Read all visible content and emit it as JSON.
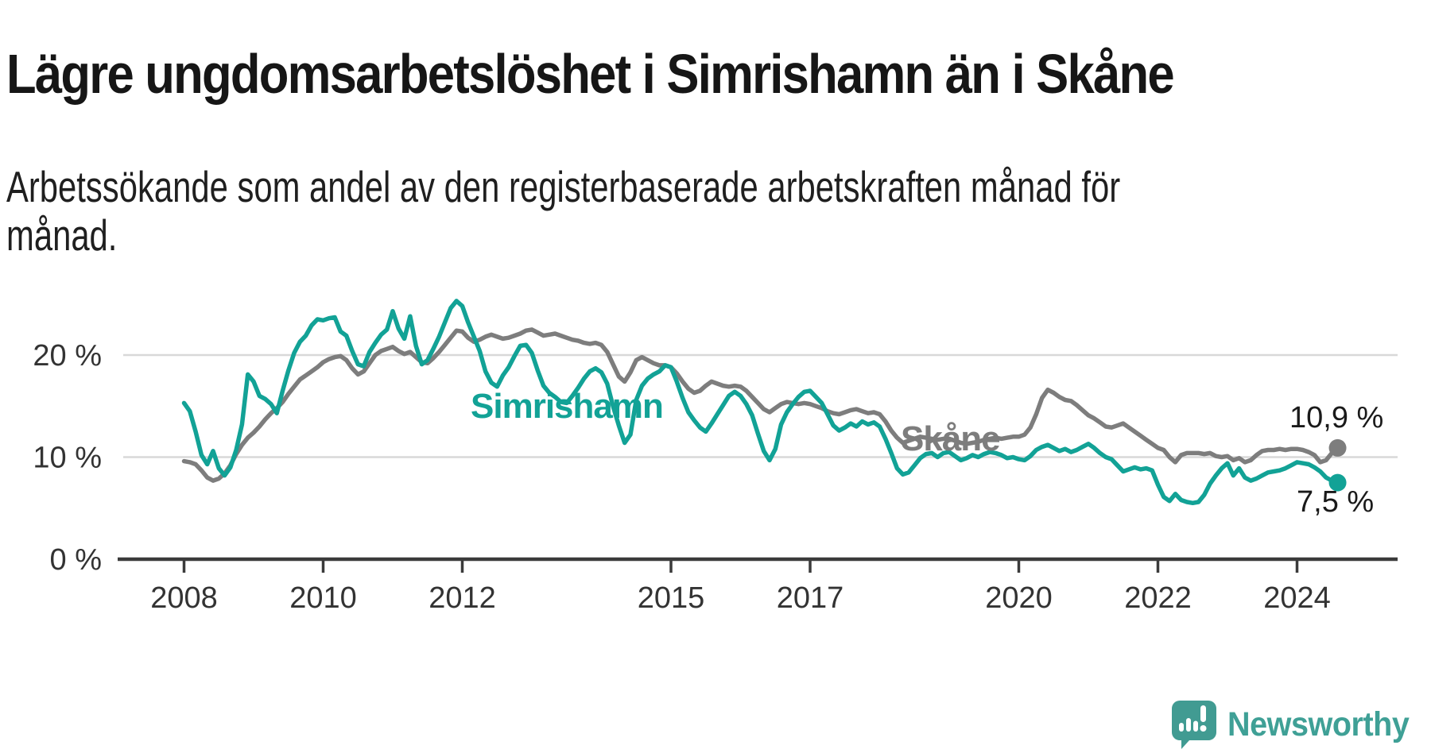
{
  "title": "Lägre ungdomsarbetslöshet i Simrishamn än i Skåne",
  "subtitle": "Arbetssökande som andel av den registerbaserade arbetskraften månad för månad.",
  "branding": {
    "logo_text": "Newsworthy",
    "logo_icon": "speech-bubble-bar-chart-icon"
  },
  "chart_data": {
    "type": "line",
    "title": "Lägre ungdomsarbetslöshet i Simrishamn än i Skåne",
    "subtitle": "Arbetssökande som andel av den registerbaserade arbetskraften månad för månad.",
    "unit": "%",
    "grid": "horizontal",
    "legend": "inline-labels",
    "x_axis": {
      "ticks": [
        "2008",
        "2010",
        "2012",
        "2015",
        "2017",
        "2020",
        "2022",
        "2024"
      ],
      "tick_years": [
        2008,
        2010,
        2012,
        2015,
        2017,
        2020,
        2022,
        2024
      ],
      "range_years": [
        2007.6,
        2025.4
      ]
    },
    "y_axis": {
      "ticks": [
        {
          "value": 0,
          "label": "0 %"
        },
        {
          "value": 10,
          "label": "10 %"
        },
        {
          "value": 20,
          "label": "20 %"
        }
      ],
      "range": [
        0,
        27
      ]
    },
    "series": [
      {
        "name": "Skåne",
        "color": "#7d7d7d",
        "end_label": "10,9 %",
        "end_value": 10.9,
        "start_year": 2008,
        "step_months": 1,
        "values": [
          9.6,
          9.5,
          9.3,
          8.7,
          8.0,
          7.7,
          7.9,
          8.4,
          9.2,
          10.3,
          11.2,
          11.9,
          12.4,
          13.0,
          13.7,
          14.3,
          14.8,
          15.4,
          16.2,
          16.9,
          17.6,
          18.0,
          18.4,
          18.8,
          19.3,
          19.6,
          19.8,
          19.9,
          19.5,
          18.7,
          18.1,
          18.4,
          19.2,
          20.0,
          20.4,
          20.6,
          20.8,
          20.4,
          20.1,
          20.3,
          19.8,
          19.3,
          19.2,
          19.7,
          20.3,
          21.0,
          21.7,
          22.4,
          22.3,
          21.7,
          21.3,
          21.5,
          21.8,
          22.0,
          21.8,
          21.6,
          21.7,
          21.9,
          22.1,
          22.4,
          22.5,
          22.2,
          21.9,
          22.0,
          22.1,
          21.9,
          21.7,
          21.5,
          21.4,
          21.2,
          21.1,
          21.2,
          21.0,
          20.3,
          19.1,
          17.9,
          17.4,
          18.3,
          19.5,
          19.8,
          19.5,
          19.2,
          19.0,
          19.0,
          18.8,
          18.2,
          17.4,
          16.7,
          16.3,
          16.5,
          17.0,
          17.4,
          17.2,
          17.0,
          16.9,
          17.0,
          16.9,
          16.5,
          15.9,
          15.3,
          14.7,
          14.4,
          14.8,
          15.2,
          15.4,
          15.3,
          15.2,
          15.3,
          15.2,
          15.0,
          14.8,
          14.5,
          14.3,
          14.2,
          14.4,
          14.6,
          14.7,
          14.5,
          14.3,
          14.4,
          14.2,
          13.5,
          12.6,
          11.9,
          11.4,
          11.6,
          11.8,
          12.0,
          11.9,
          11.8,
          11.7,
          11.8,
          11.8,
          11.6,
          11.4,
          11.3,
          11.4,
          11.5,
          11.7,
          11.8,
          11.9,
          11.8,
          11.9,
          12.0,
          12.0,
          12.2,
          12.9,
          14.2,
          15.8,
          16.6,
          16.3,
          15.9,
          15.6,
          15.5,
          15.1,
          14.6,
          14.1,
          13.8,
          13.4,
          13.0,
          12.9,
          13.1,
          13.3,
          12.9,
          12.5,
          12.1,
          11.7,
          11.3,
          10.9,
          10.7,
          10.0,
          9.5,
          10.2,
          10.4,
          10.4,
          10.4,
          10.3,
          10.4,
          10.1,
          10.0,
          10.1,
          9.7,
          9.9,
          9.5,
          9.7,
          10.2,
          10.6,
          10.7,
          10.7,
          10.8,
          10.7,
          10.8,
          10.8,
          10.7,
          10.5,
          10.2,
          9.5,
          9.7,
          10.4,
          10.9
        ]
      },
      {
        "name": "Simrishamn",
        "color": "#12a296",
        "end_label": "7,5 %",
        "end_value": 7.5,
        "start_year": 2008,
        "step_months": 1,
        "values": [
          15.3,
          14.5,
          12.5,
          10.2,
          9.3,
          10.6,
          8.9,
          8.2,
          9.0,
          10.7,
          13.2,
          18.1,
          17.4,
          16.0,
          15.7,
          15.2,
          14.3,
          16.5,
          18.5,
          20.2,
          21.3,
          21.9,
          22.9,
          23.5,
          23.4,
          23.6,
          23.7,
          22.3,
          21.9,
          20.4,
          19.1,
          18.9,
          20.3,
          21.2,
          22.0,
          22.5,
          24.3,
          22.6,
          21.6,
          23.8,
          20.9,
          19.1,
          19.5,
          20.6,
          21.8,
          23.2,
          24.6,
          25.3,
          24.8,
          23.2,
          21.8,
          20.4,
          18.4,
          17.3,
          16.9,
          18.0,
          18.8,
          19.9,
          20.9,
          21.0,
          20.2,
          18.5,
          17.0,
          16.3,
          15.9,
          15.4,
          15.3,
          16.0,
          16.8,
          17.7,
          18.4,
          18.7,
          18.3,
          17.2,
          15.0,
          13.1,
          11.4,
          12.2,
          15.6,
          17.0,
          17.7,
          18.1,
          18.4,
          19.0,
          18.8,
          17.4,
          15.8,
          14.4,
          13.6,
          12.9,
          12.5,
          13.3,
          14.2,
          15.1,
          16.0,
          16.4,
          16.0,
          15.2,
          14.1,
          12.3,
          10.6,
          9.7,
          10.8,
          13.2,
          14.4,
          15.2,
          15.9,
          16.4,
          16.5,
          15.9,
          15.3,
          14.2,
          13.1,
          12.6,
          12.9,
          13.3,
          13.0,
          13.5,
          13.2,
          13.4,
          13.0,
          11.8,
          10.4,
          8.9,
          8.3,
          8.5,
          9.2,
          9.9,
          10.3,
          10.4,
          10.0,
          10.4,
          10.5,
          10.1,
          9.7,
          9.9,
          10.2,
          10.0,
          10.3,
          10.5,
          10.4,
          10.2,
          9.9,
          10.0,
          9.8,
          9.7,
          10.1,
          10.7,
          11.0,
          11.2,
          10.9,
          10.6,
          10.8,
          10.5,
          10.7,
          11.0,
          11.3,
          10.9,
          10.4,
          10.0,
          9.8,
          9.2,
          8.6,
          8.8,
          9.0,
          8.8,
          8.9,
          8.7,
          7.3,
          6.1,
          5.7,
          6.4,
          5.8,
          5.6,
          5.5,
          5.6,
          6.3,
          7.4,
          8.2,
          8.9,
          9.4,
          8.2,
          8.9,
          8.0,
          7.7,
          7.9,
          8.2,
          8.5,
          8.6,
          8.7,
          8.9,
          9.2,
          9.5,
          9.4,
          9.3,
          9.0,
          8.6,
          8.0,
          7.7,
          7.5
        ]
      }
    ],
    "style": {
      "grid_color": "#d8d8d8",
      "axis_color": "#3b3b3b",
      "tick_label_color": "#333333",
      "line_width": 5.5,
      "end_dot_radius": 11
    }
  }
}
